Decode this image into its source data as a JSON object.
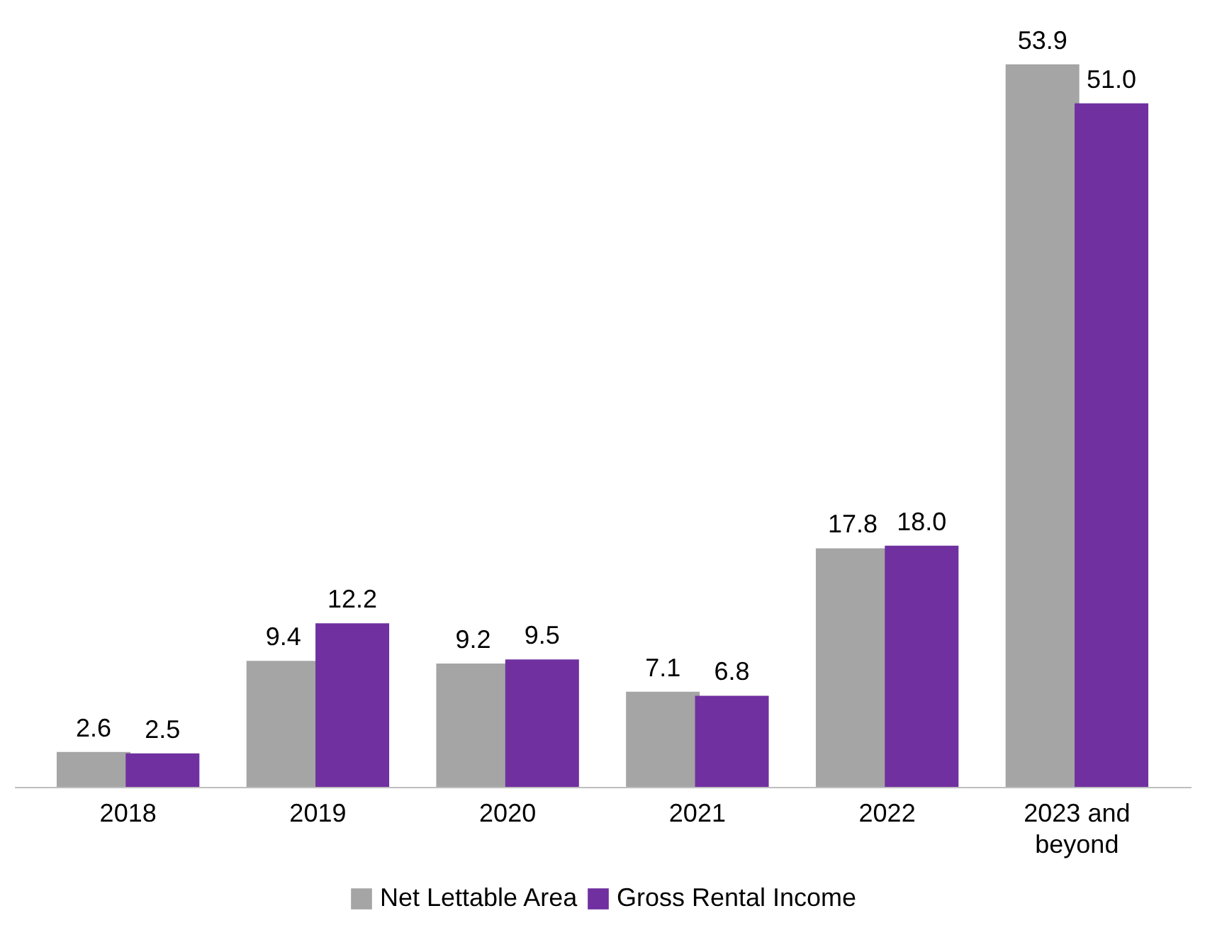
{
  "chart_data": {
    "type": "bar",
    "categories": [
      "2018",
      "2019",
      "2020",
      "2021",
      "2022",
      "2023 and beyond"
    ],
    "series": [
      {
        "name": "Net Lettable Area",
        "color": "#a5a5a5",
        "values": [
          2.6,
          9.4,
          9.2,
          7.1,
          17.8,
          53.9
        ],
        "value_labels": [
          "2.6",
          "9.4",
          "9.2",
          "7.1",
          "17.8",
          "53.9"
        ]
      },
      {
        "name": "Gross Rental Income",
        "color": "#7030a0",
        "values": [
          2.5,
          12.2,
          9.5,
          6.8,
          18.0,
          51.0
        ],
        "value_labels": [
          "2.5",
          "12.2",
          "9.5",
          "6.8",
          "18.0",
          "51.0"
        ]
      }
    ],
    "legend": "bottom"
  }
}
